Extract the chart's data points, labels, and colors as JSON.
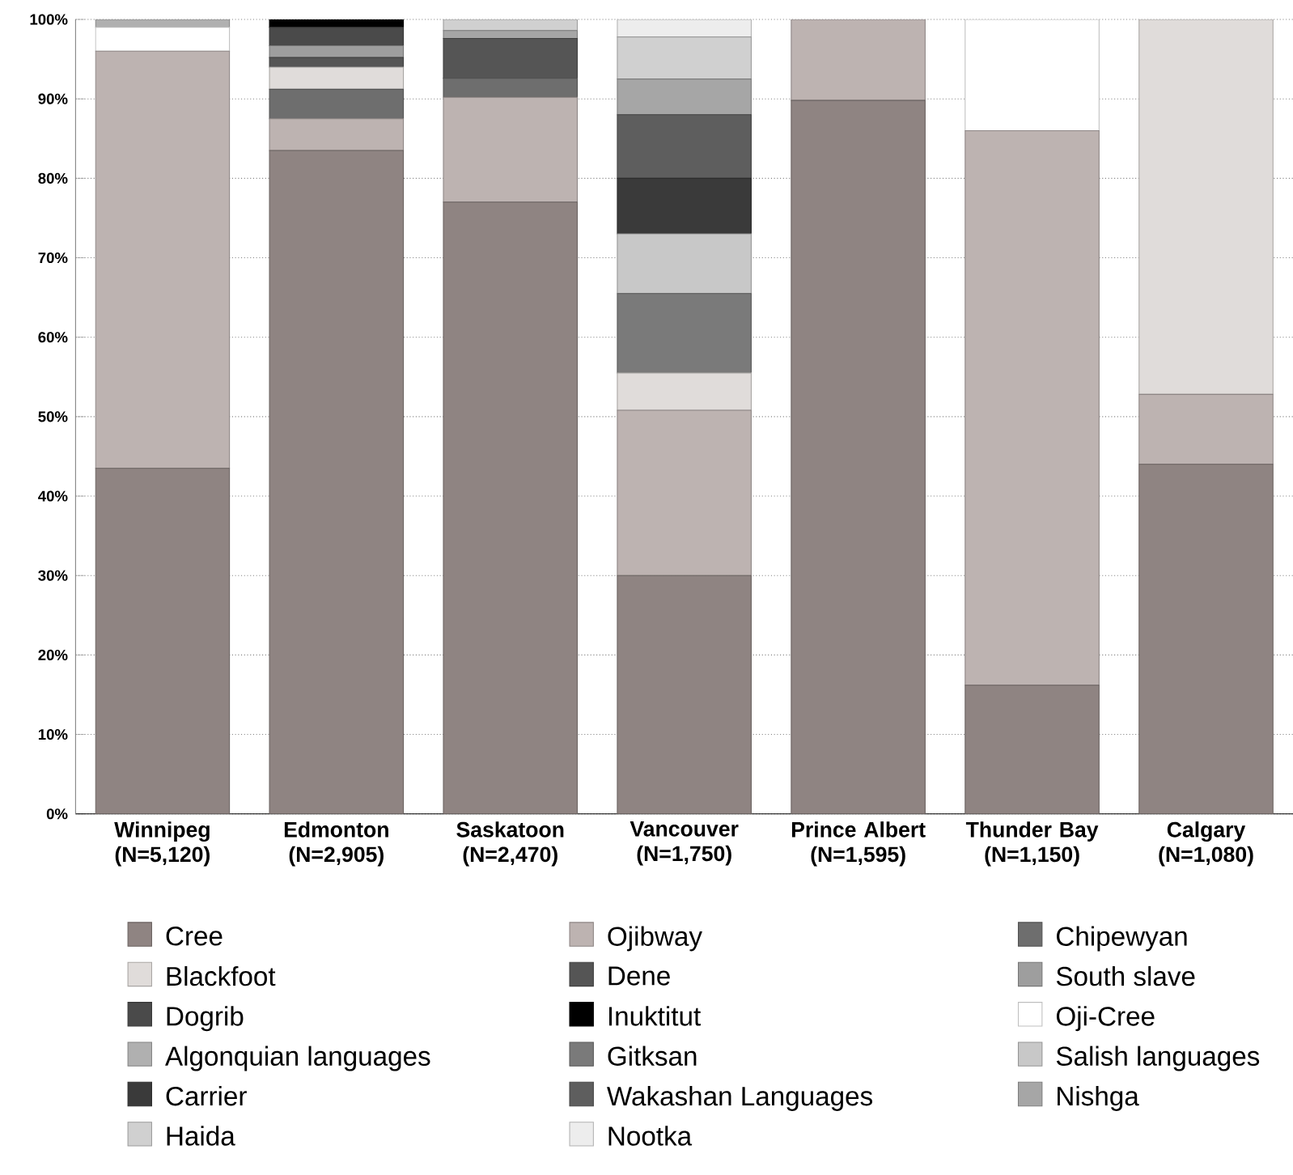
{
  "chart_data": {
    "type": "bar",
    "stacked": true,
    "categories": [
      "Winnipeg (N=5,120)",
      "Edmonton (N=2,905)",
      "Saskatoon (N=2,470)",
      "Vancouver (N=1,750)",
      "Prince Albert (N=1,595)",
      "Thunder Bay (N=1,150)",
      "Calgary (N=1,080)"
    ],
    "series": [
      {
        "name": "Cree",
        "color": "#8f8482",
        "values": [
          43.5,
          83.5,
          77,
          30,
          89.8,
          16.2,
          44
        ]
      },
      {
        "name": "Ojibway",
        "color": "#bdb3b1",
        "values": [
          52.5,
          4,
          13.2,
          20.8,
          10.2,
          69.8,
          8.8
        ]
      },
      {
        "name": "Chipewyan",
        "color": "#6e6e6e",
        "values": [
          null,
          3.7,
          2.4,
          null,
          null,
          null,
          null
        ]
      },
      {
        "name": "Blackfoot",
        "color": "#e0dcda",
        "values": [
          null,
          2.8,
          null,
          4.7,
          null,
          null,
          47.2
        ]
      },
      {
        "name": "Dene",
        "color": "#555555",
        "values": [
          null,
          1.2,
          5,
          null,
          null,
          null,
          null
        ]
      },
      {
        "name": "South slave",
        "color": "#9e9e9e",
        "values": [
          null,
          1.5,
          null,
          null,
          null,
          null,
          null
        ]
      },
      {
        "name": "Dogrib",
        "color": "#4a4a4a",
        "values": [
          null,
          2.3,
          null,
          null,
          null,
          null,
          null
        ]
      },
      {
        "name": "Inuktitut",
        "color": "#000000",
        "values": [
          null,
          1,
          null,
          null,
          null,
          null,
          null
        ]
      },
      {
        "name": "Oji-Cree",
        "color": "#ffffff",
        "values": [
          3,
          null,
          null,
          null,
          null,
          14,
          null
        ]
      },
      {
        "name": "Algonquian languages",
        "color": "#b0b0b0",
        "values": [
          1,
          null,
          null,
          null,
          null,
          null,
          null
        ]
      },
      {
        "name": "Gitksan",
        "color": "#7a7a7a",
        "values": [
          null,
          null,
          null,
          10,
          null,
          null,
          null
        ]
      },
      {
        "name": "Salish languages",
        "color": "#c8c8c8",
        "values": [
          null,
          null,
          null,
          7.5,
          null,
          null,
          null
        ]
      },
      {
        "name": "Carrier",
        "color": "#3a3a3a",
        "values": [
          null,
          null,
          null,
          7,
          null,
          null,
          null
        ]
      },
      {
        "name": "Wakashan Languages",
        "color": "#5e5e5e",
        "values": [
          null,
          null,
          null,
          8,
          null,
          null,
          null
        ]
      },
      {
        "name": "Nishga",
        "color": "#a6a6a6",
        "values": [
          null,
          null,
          1,
          4.5,
          null,
          null,
          null
        ]
      },
      {
        "name": "Haida",
        "color": "#d0d0d0",
        "values": [
          null,
          null,
          1.4,
          5.3,
          null,
          null,
          null
        ]
      },
      {
        "name": "Nootka",
        "color": "#ededed",
        "values": [
          null,
          null,
          null,
          2.2,
          null,
          null,
          null
        ]
      }
    ],
    "ylim": [
      0,
      100
    ],
    "yticks": [
      {
        "value": 0,
        "label": "0%"
      },
      {
        "value": 10,
        "label": "10%"
      },
      {
        "value": 20,
        "label": "20%"
      },
      {
        "value": 30,
        "label": "30%"
      },
      {
        "value": 40,
        "label": "40%"
      },
      {
        "value": 50,
        "label": "50%"
      },
      {
        "value": 60,
        "label": "60%"
      },
      {
        "value": 70,
        "label": "70%"
      },
      {
        "value": 80,
        "label": "80%"
      },
      {
        "value": 90,
        "label": "90%"
      },
      {
        "value": 100,
        "label": "100%"
      }
    ],
    "grid": "y",
    "legend": "bottom"
  }
}
